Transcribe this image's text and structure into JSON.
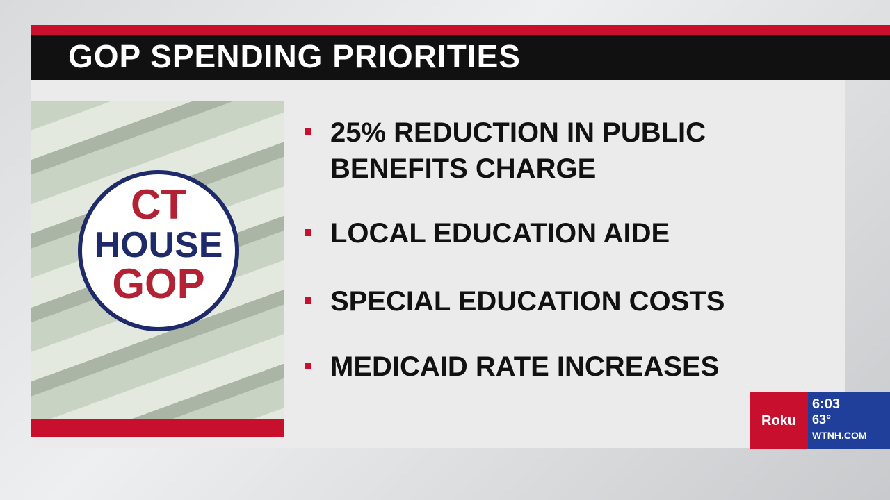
{
  "header": {
    "title": "GOP SPENDING PRIORITIES"
  },
  "logo": {
    "line1": "CT",
    "line2": "HOUSE",
    "line3": "GOP"
  },
  "bullets": [
    "25% REDUCTION IN PUBLIC BENEFITS CHARGE",
    "LOCAL EDUCATION AIDE",
    "SPECIAL EDUCATION COSTS",
    "MEDICAID RATE INCREASES"
  ],
  "bug": {
    "sponsor": "Roku",
    "time": "6:03",
    "temp": "63°",
    "site": "WTNH.COM"
  }
}
